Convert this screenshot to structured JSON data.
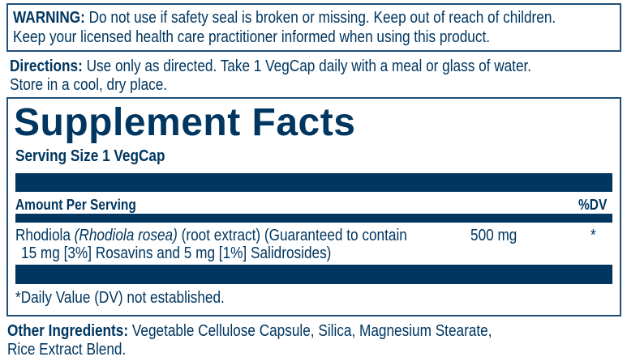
{
  "warning": {
    "label": "WARNING:",
    "line1": " Do not use if safety seal is broken or missing. Keep out of reach of children.",
    "line2": "Keep your licensed health care practitioner informed when using this product."
  },
  "directions": {
    "label": "Directions:",
    "line1": " Use only as directed. Take 1 VegCap daily with a meal or glass of water.",
    "line2": "Store in a cool, dry place."
  },
  "facts": {
    "title": "Supplement Facts",
    "serving_size": "Serving Size 1 VegCap",
    "amount_header": "Amount Per Serving",
    "dv_header": "%DV",
    "rows": [
      {
        "name": "Rhodiola ",
        "latin": "(Rhodiola rosea)",
        "desc1": " (root extract) (Guaranteed to contain",
        "desc2": "15 mg [3%] Rosavins and 5 mg [1%] Salidrosides)",
        "amount": "500 mg",
        "dv": "*"
      }
    ],
    "footnote": "*Daily Value (DV) not established."
  },
  "other_ingredients": {
    "label": "Other Ingredients:",
    "line1": " Vegetable Cellulose Capsule, Silica, Magnesium Stearate,",
    "line2": "Rice Extract Blend."
  },
  "colors": {
    "primary": "#003660"
  }
}
